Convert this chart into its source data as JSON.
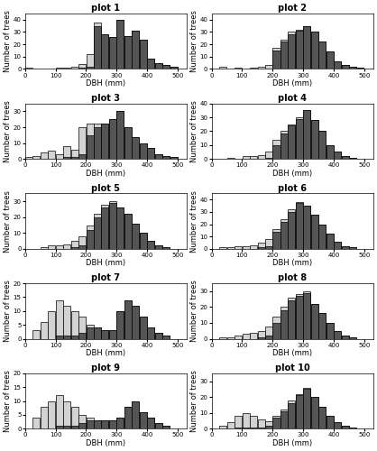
{
  "plots": [
    {
      "title": "plot 1",
      "bins": [
        0,
        25,
        50,
        75,
        100,
        125,
        150,
        175,
        200,
        225,
        250,
        275,
        300,
        325,
        350,
        375,
        400,
        425,
        450,
        475,
        500
      ],
      "all_trees": [
        1,
        0,
        0,
        0,
        1,
        1,
        2,
        4,
        12,
        38,
        28,
        26,
        40,
        27,
        31,
        24,
        8,
        5,
        3,
        2
      ],
      "det_trees": [
        0,
        0,
        0,
        0,
        0,
        0,
        0,
        1,
        2,
        35,
        28,
        26,
        40,
        27,
        31,
        24,
        8,
        5,
        3,
        2
      ],
      "ylim": 45
    },
    {
      "title": "plot 2",
      "bins": [
        0,
        25,
        50,
        75,
        100,
        125,
        150,
        175,
        200,
        225,
        250,
        275,
        300,
        325,
        350,
        375,
        400,
        425,
        450,
        475,
        500
      ],
      "all_trees": [
        0,
        2,
        0,
        1,
        0,
        1,
        2,
        3,
        17,
        24,
        30,
        32,
        35,
        30,
        22,
        14,
        6,
        3,
        2,
        1
      ],
      "det_trees": [
        0,
        0,
        0,
        0,
        0,
        0,
        0,
        0,
        15,
        22,
        28,
        31,
        35,
        30,
        22,
        14,
        6,
        3,
        2,
        1
      ],
      "ylim": 45
    },
    {
      "title": "plot 3",
      "bins": [
        0,
        25,
        50,
        75,
        100,
        125,
        150,
        175,
        200,
        225,
        250,
        275,
        300,
        325,
        350,
        375,
        400,
        425,
        450,
        475,
        500
      ],
      "all_trees": [
        1,
        2,
        4,
        5,
        3,
        8,
        6,
        20,
        22,
        22,
        22,
        25,
        30,
        20,
        14,
        10,
        7,
        3,
        2,
        1
      ],
      "det_trees": [
        0,
        0,
        0,
        0,
        0,
        1,
        1,
        3,
        15,
        20,
        22,
        25,
        30,
        20,
        14,
        10,
        7,
        3,
        2,
        1
      ],
      "ylim": 35
    },
    {
      "title": "plot 4",
      "bins": [
        0,
        25,
        50,
        75,
        100,
        125,
        150,
        175,
        200,
        225,
        250,
        275,
        300,
        325,
        350,
        375,
        400,
        425,
        450,
        475,
        500
      ],
      "all_trees": [
        0,
        0,
        1,
        0,
        2,
        2,
        3,
        5,
        14,
        20,
        25,
        30,
        35,
        28,
        20,
        10,
        5,
        2,
        1,
        0
      ],
      "det_trees": [
        0,
        0,
        0,
        0,
        0,
        0,
        0,
        1,
        10,
        18,
        24,
        29,
        35,
        28,
        20,
        10,
        5,
        2,
        1,
        0
      ],
      "ylim": 40
    },
    {
      "title": "plot 5",
      "bins": [
        0,
        25,
        50,
        75,
        100,
        125,
        150,
        175,
        200,
        225,
        250,
        275,
        300,
        325,
        350,
        375,
        400,
        425,
        450,
        475,
        500
      ],
      "all_trees": [
        0,
        0,
        1,
        2,
        2,
        3,
        5,
        8,
        15,
        22,
        28,
        30,
        26,
        22,
        16,
        10,
        5,
        2,
        1,
        0
      ],
      "det_trees": [
        0,
        0,
        0,
        0,
        0,
        0,
        1,
        2,
        12,
        20,
        26,
        29,
        26,
        22,
        16,
        10,
        5,
        2,
        1,
        0
      ],
      "ylim": 35
    },
    {
      "title": "plot 6",
      "bins": [
        0,
        25,
        50,
        75,
        100,
        125,
        150,
        175,
        200,
        225,
        250,
        275,
        300,
        325,
        350,
        375,
        400,
        425,
        450,
        475,
        500
      ],
      "all_trees": [
        0,
        1,
        1,
        2,
        2,
        3,
        5,
        8,
        16,
        24,
        32,
        38,
        35,
        28,
        20,
        12,
        6,
        2,
        1,
        0
      ],
      "det_trees": [
        0,
        0,
        0,
        0,
        0,
        0,
        1,
        2,
        14,
        22,
        30,
        37,
        35,
        28,
        20,
        12,
        6,
        2,
        1,
        0
      ],
      "ylim": 45
    },
    {
      "title": "plot 7",
      "bins": [
        0,
        25,
        50,
        75,
        100,
        125,
        150,
        175,
        200,
        225,
        250,
        275,
        300,
        325,
        350,
        375,
        400,
        425,
        450,
        475,
        500
      ],
      "all_trees": [
        0,
        3,
        6,
        10,
        14,
        12,
        10,
        8,
        5,
        4,
        3,
        3,
        10,
        14,
        12,
        8,
        4,
        2,
        1,
        0
      ],
      "det_trees": [
        0,
        0,
        0,
        0,
        1,
        1,
        1,
        2,
        4,
        4,
        3,
        3,
        10,
        14,
        12,
        8,
        4,
        2,
        1,
        0
      ],
      "ylim": 20
    },
    {
      "title": "plot 8",
      "bins": [
        0,
        25,
        50,
        75,
        100,
        125,
        150,
        175,
        200,
        225,
        250,
        275,
        300,
        325,
        350,
        375,
        400,
        425,
        450,
        475,
        500
      ],
      "all_trees": [
        0,
        1,
        1,
        2,
        3,
        4,
        5,
        8,
        14,
        20,
        26,
        28,
        30,
        22,
        16,
        10,
        5,
        2,
        1,
        0
      ],
      "det_trees": [
        0,
        0,
        0,
        0,
        0,
        0,
        1,
        2,
        10,
        18,
        24,
        27,
        29,
        22,
        16,
        10,
        5,
        2,
        1,
        0
      ],
      "ylim": 35
    },
    {
      "title": "plot 9",
      "bins": [
        0,
        25,
        50,
        75,
        100,
        125,
        150,
        175,
        200,
        225,
        250,
        275,
        300,
        325,
        350,
        375,
        400,
        425,
        450,
        475,
        500
      ],
      "all_trees": [
        0,
        4,
        8,
        10,
        12,
        10,
        8,
        5,
        4,
        3,
        3,
        3,
        4,
        8,
        10,
        6,
        4,
        2,
        1,
        0
      ],
      "det_trees": [
        0,
        0,
        0,
        0,
        1,
        1,
        1,
        2,
        3,
        3,
        3,
        3,
        4,
        8,
        10,
        6,
        4,
        2,
        1,
        0
      ],
      "ylim": 20
    },
    {
      "title": "plot 10",
      "bins": [
        0,
        25,
        50,
        75,
        100,
        125,
        150,
        175,
        200,
        225,
        250,
        275,
        300,
        325,
        350,
        375,
        400,
        425,
        450,
        475,
        500
      ],
      "all_trees": [
        0,
        2,
        4,
        8,
        10,
        8,
        6,
        5,
        8,
        12,
        18,
        22,
        26,
        20,
        14,
        8,
        4,
        2,
        1,
        0
      ],
      "det_trees": [
        0,
        0,
        0,
        1,
        1,
        1,
        1,
        2,
        7,
        11,
        16,
        21,
        25,
        20,
        14,
        8,
        4,
        2,
        1,
        0
      ],
      "ylim": 35
    }
  ],
  "bar_color_all": "#d3d3d3",
  "bar_color_det": "#555555",
  "bar_edge_color": "#000000",
  "xlabel": "DBH (mm)",
  "ylabel": "Number of trees",
  "figsize": [
    4.18,
    5.0
  ],
  "dpi": 100
}
